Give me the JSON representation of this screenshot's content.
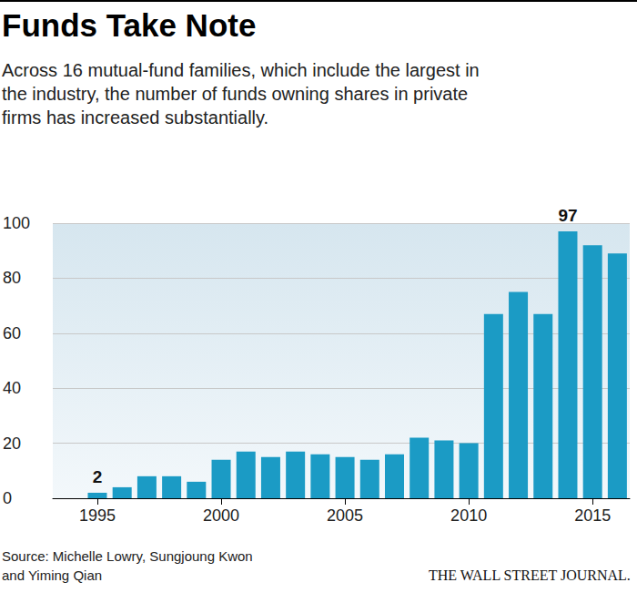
{
  "chart_data": {
    "type": "bar",
    "title": "Funds Take Note",
    "subtitle": "Across 16 mutual-fund families, which include the largest in the industry, the number of funds owning shares in private firms has increased substantially.",
    "source": "Source: Michelle Lowry, Sungjoung Kwon and Yiming Qian",
    "credit": "THE WALL STREET JOURNAL.",
    "x": [
      1995,
      1996,
      1997,
      1998,
      1999,
      2000,
      2001,
      2002,
      2003,
      2004,
      2005,
      2006,
      2007,
      2008,
      2009,
      2010,
      2011,
      2012,
      2013,
      2014,
      2015,
      2016
    ],
    "values": [
      2,
      4,
      8,
      8,
      6,
      14,
      17,
      15,
      17,
      16,
      15,
      14,
      16,
      22,
      21,
      20,
      67,
      75,
      67,
      97,
      92,
      89
    ],
    "color": "#1b9bc5",
    "xlim": [
      1993.2,
      2016.5
    ],
    "xticks": [
      1995,
      2000,
      2005,
      2010,
      2015
    ],
    "ylim": [
      0,
      100
    ],
    "yticks": [
      0,
      20,
      40,
      60,
      80,
      100
    ],
    "grid": true,
    "annotations": [
      {
        "x": 1995,
        "text": "2"
      },
      {
        "x": 2014,
        "text": "97"
      }
    ]
  }
}
